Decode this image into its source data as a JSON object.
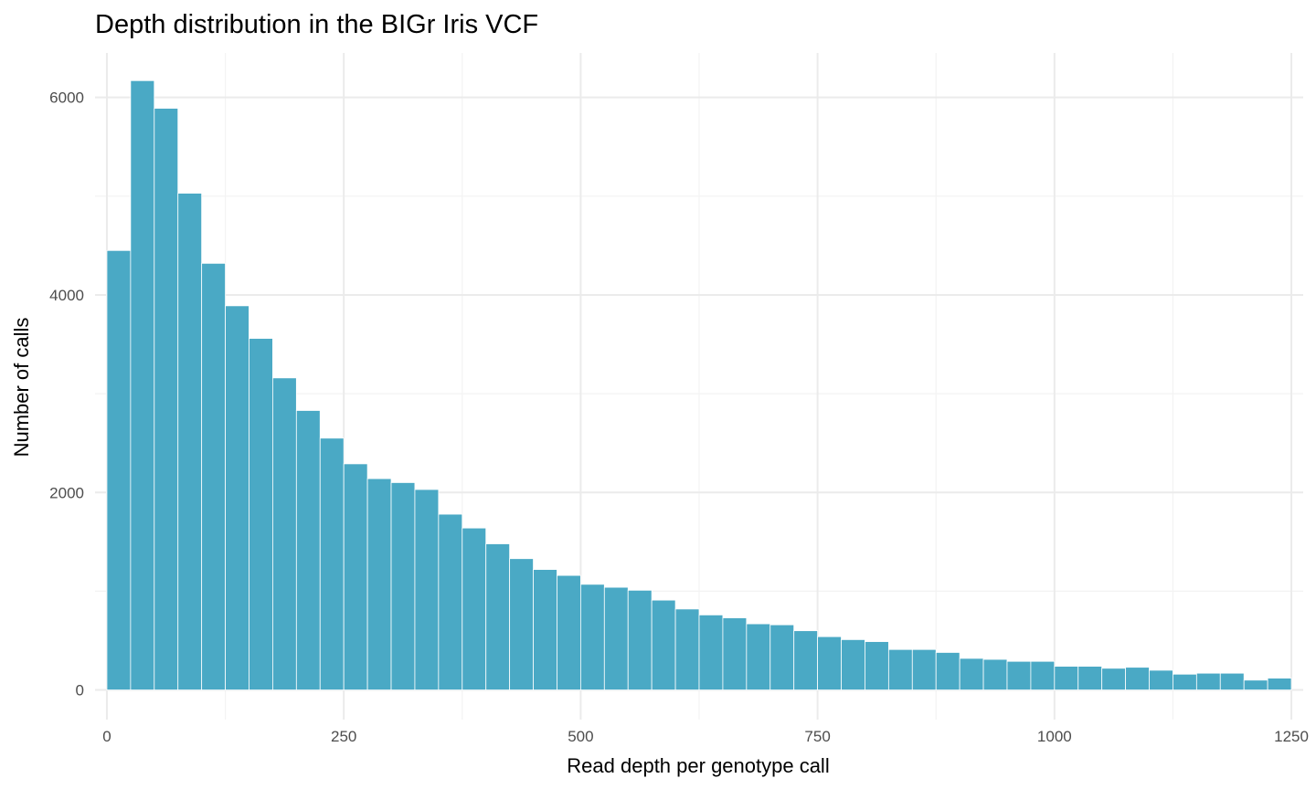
{
  "chart_data": {
    "type": "bar",
    "title": "Depth distribution in the BIGr Iris VCF",
    "xlabel": "Read depth per genotype call",
    "ylabel": "Number of calls",
    "bin_width": 25,
    "bin_start": 0,
    "xlim": [
      -12.5,
      1262.5
    ],
    "ylim": [
      -300,
      6450
    ],
    "x_ticks": [
      0,
      250,
      500,
      750,
      1000,
      1250
    ],
    "x_tick_labels": [
      "0",
      "250",
      "500",
      "750",
      "1000",
      "1250"
    ],
    "y_ticks": [
      0,
      2000,
      4000,
      6000
    ],
    "y_tick_labels": [
      "0",
      "2000",
      "4000",
      "6000"
    ],
    "grid": true,
    "legend": "none",
    "bar_color": "#4AA9C5",
    "values": [
      4450,
      6170,
      5890,
      5030,
      4320,
      3890,
      3560,
      3160,
      2830,
      2550,
      2290,
      2140,
      2100,
      2030,
      1780,
      1640,
      1480,
      1330,
      1220,
      1160,
      1070,
      1040,
      1010,
      910,
      820,
      760,
      730,
      670,
      660,
      600,
      540,
      510,
      490,
      410,
      410,
      380,
      320,
      310,
      290,
      290,
      240,
      240,
      220,
      230,
      200,
      160,
      170,
      170,
      100,
      120
    ]
  }
}
